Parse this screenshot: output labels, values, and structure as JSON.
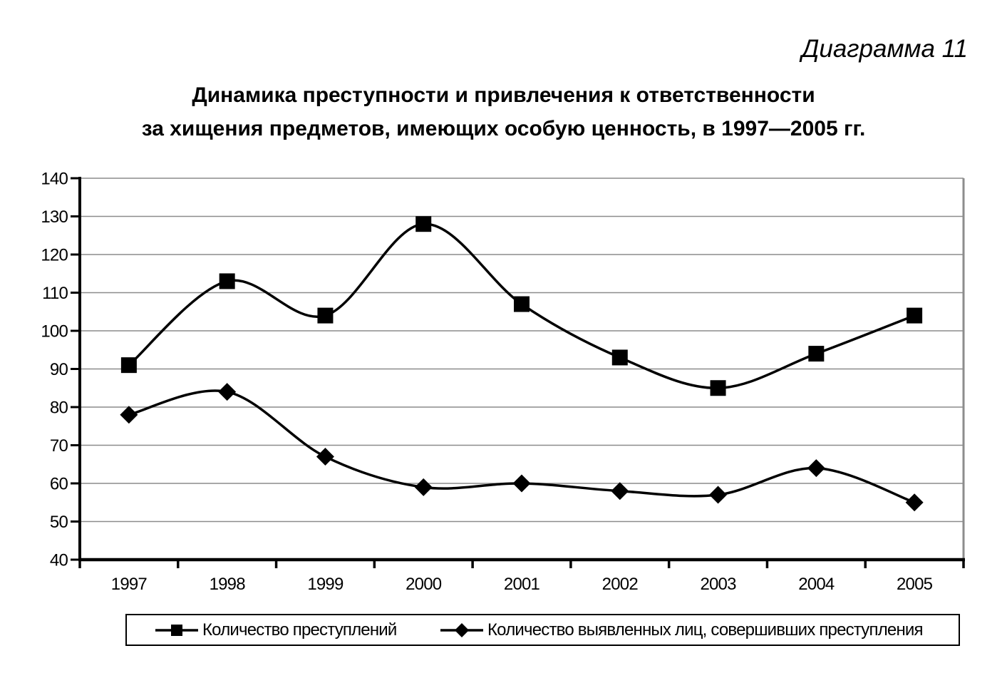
{
  "page": {
    "diagram_label": "Диаграмма 11",
    "title_line1": "Динамика преступности и привлечения к ответственности",
    "title_line2": "за хищения предметов, имеющих особую ценность, в 1997—2005 гг."
  },
  "chart_data": {
    "type": "line",
    "title": "Динамика преступности и привлечения к ответственности за хищения предметов, имеющих особую ценность, в 1997—2005 гг.",
    "categories": [
      "1997",
      "1998",
      "1999",
      "2000",
      "2001",
      "2002",
      "2003",
      "2004",
      "2005"
    ],
    "series": [
      {
        "name": "Количество преступлений",
        "marker": "square",
        "values": [
          91,
          113,
          104,
          128,
          107,
          93,
          85,
          94,
          104
        ]
      },
      {
        "name": "Количество выявленных лиц, совершивших преступления",
        "marker": "diamond",
        "values": [
          78,
          84,
          67,
          59,
          60,
          58,
          57,
          64,
          55
        ]
      }
    ],
    "ylim": [
      40,
      140
    ],
    "y_tick_step": 10,
    "y_ticks": [
      40,
      50,
      60,
      70,
      80,
      90,
      100,
      110,
      120,
      130,
      140
    ],
    "grid": true,
    "line_smoothing": true,
    "legend_position": "bottom",
    "colors": {
      "line": "#000000",
      "marker": "#000000",
      "axis": "#000000",
      "grid": "#8c8c8c",
      "plot_border": "#8c8c8c",
      "text": "#000000",
      "background": "#ffffff"
    }
  }
}
